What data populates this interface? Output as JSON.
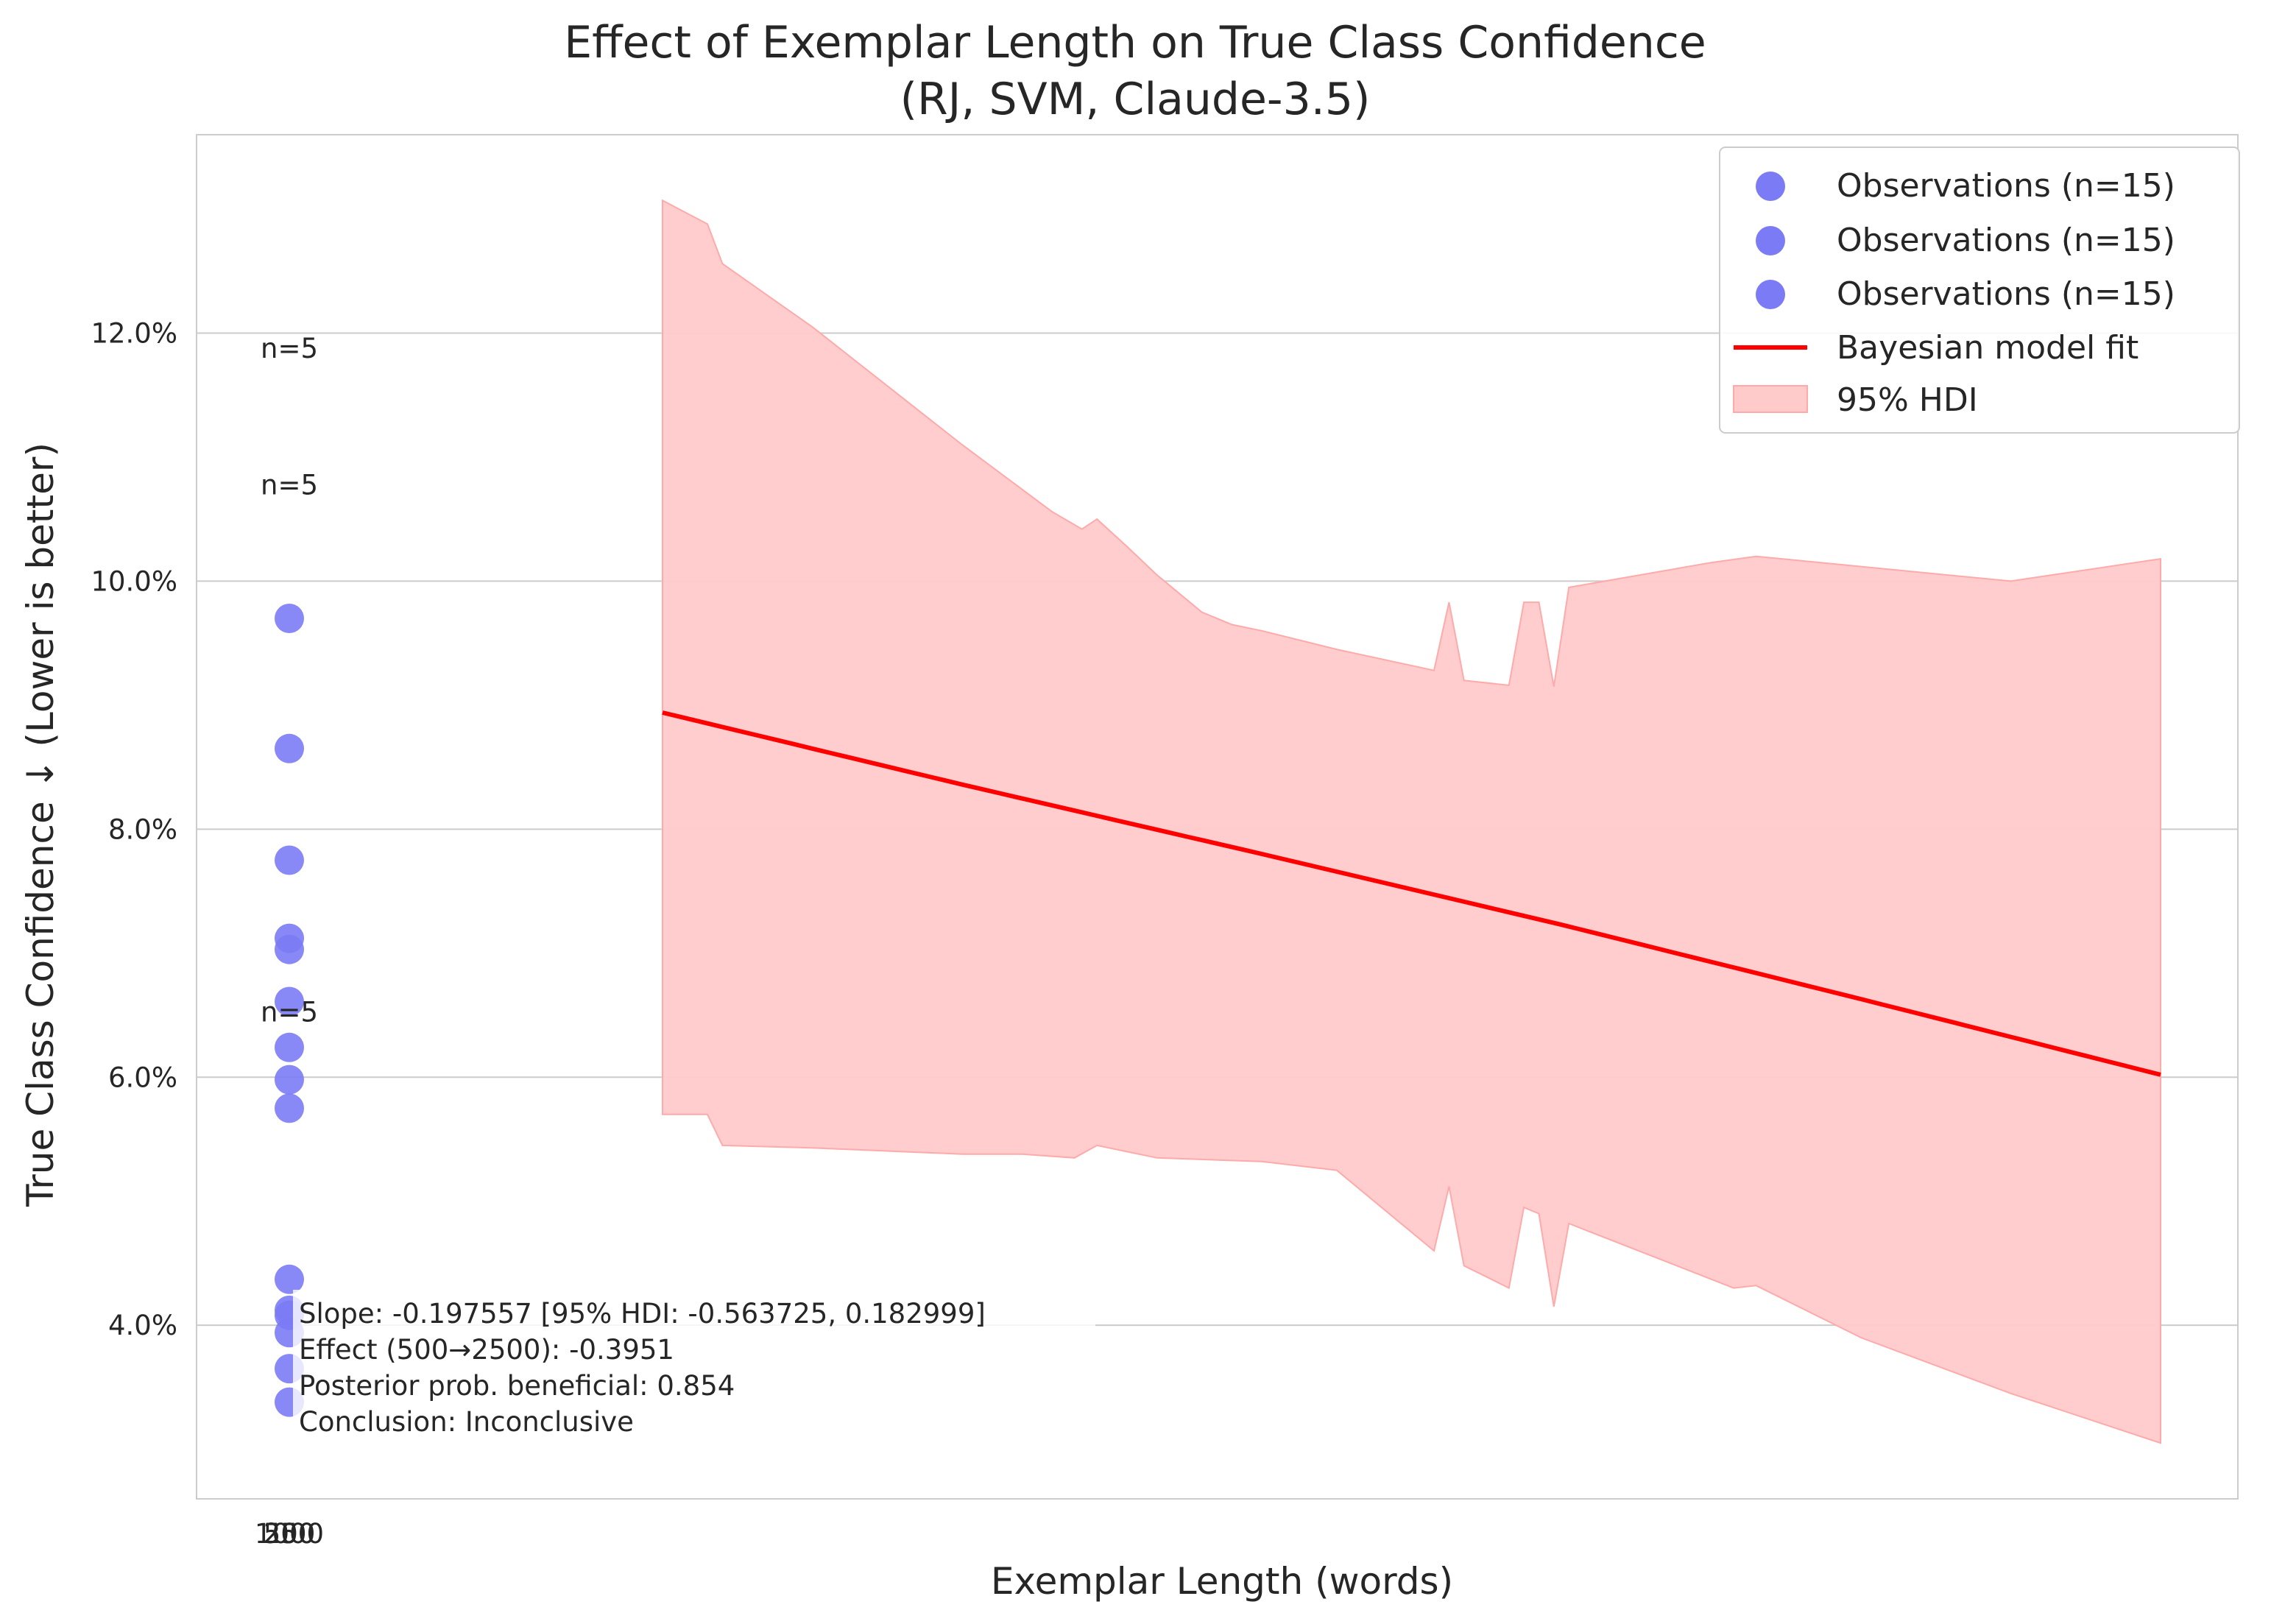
{
  "chart_data": {
    "type": "scatter",
    "title_line1": "Effect of Exemplar Length on True Class Confidence",
    "title_line2": "(RJ, SVM, Claude-3.5)",
    "xlabel": "Exemplar Length (words)",
    "ylabel": "True Class Confidence ↓ (Lower is better)",
    "x_tick_labels": [
      "250",
      "500",
      "1000"
    ],
    "y_ticks": [
      4.0,
      6.0,
      8.0,
      10.0,
      12.0
    ],
    "y_tick_labels": [
      "4.0%",
      "6.0%",
      "8.0%",
      "10.0%",
      "12.0%"
    ],
    "ylim": [
      2.6,
      13.6
    ],
    "grid": "horizontal",
    "legend_placement": "top-right",
    "colors": {
      "observations": "#7b7bf5",
      "fit": "#ff0000",
      "hdi": "#ffcaca",
      "hdi_edge": "#ffaaaa"
    },
    "series": [
      {
        "name": "Observations (n=15)",
        "x_label": "250",
        "values": [
          9.7,
          8.65,
          7.75,
          7.12,
          7.03,
          6.61,
          6.24,
          5.98,
          5.75,
          4.37,
          4.12,
          4.08,
          3.94,
          3.65,
          3.38
        ]
      },
      {
        "name": "Observations (n=15)",
        "x_label": "500",
        "values": []
      },
      {
        "name": "Observations (n=15)",
        "x_label": "1000",
        "values": []
      }
    ],
    "group_annotations": [
      {
        "text": "n=5",
        "y": 11.8
      },
      {
        "text": "n=5",
        "y": 10.7
      },
      {
        "text": "n=5",
        "y": 6.45
      }
    ],
    "fit": {
      "name": "Bayesian model fit",
      "points": [
        [
          0,
          8.94
        ],
        [
          0.2,
          8.36
        ],
        [
          0.4,
          7.8
        ],
        [
          0.6,
          7.23
        ],
        [
          0.8,
          6.63
        ],
        [
          1.0,
          6.02
        ]
      ]
    },
    "hdi": {
      "name": "95% HDI",
      "upper": [
        [
          0,
          13.07
        ],
        [
          0.03,
          12.88
        ],
        [
          0.04,
          12.56
        ],
        [
          0.1,
          12.05
        ],
        [
          0.2,
          11.1
        ],
        [
          0.26,
          10.56
        ],
        [
          0.28,
          10.42
        ],
        [
          0.29,
          10.5
        ],
        [
          0.31,
          10.28
        ],
        [
          0.33,
          10.05
        ],
        [
          0.35,
          9.85
        ],
        [
          0.36,
          9.75
        ],
        [
          0.38,
          9.65
        ],
        [
          0.4,
          9.6
        ],
        [
          0.45,
          9.45
        ],
        [
          0.515,
          9.28
        ],
        [
          0.525,
          9.83
        ],
        [
          0.535,
          9.2
        ],
        [
          0.565,
          9.16
        ],
        [
          0.575,
          9.83
        ],
        [
          0.585,
          9.83
        ],
        [
          0.595,
          9.15
        ],
        [
          0.605,
          9.95
        ],
        [
          0.7,
          10.15
        ],
        [
          0.73,
          10.2
        ],
        [
          0.9,
          10.0
        ],
        [
          1.0,
          10.18
        ]
      ],
      "lower": [
        [
          1.0,
          3.05
        ],
        [
          0.9,
          3.45
        ],
        [
          0.8,
          3.9
        ],
        [
          0.73,
          4.32
        ],
        [
          0.715,
          4.3
        ],
        [
          0.605,
          4.82
        ],
        [
          0.595,
          4.15
        ],
        [
          0.585,
          4.9
        ],
        [
          0.575,
          4.95
        ],
        [
          0.565,
          4.3
        ],
        [
          0.535,
          4.48
        ],
        [
          0.525,
          5.12
        ],
        [
          0.515,
          4.6
        ],
        [
          0.45,
          5.25
        ],
        [
          0.4,
          5.32
        ],
        [
          0.33,
          5.35
        ],
        [
          0.29,
          5.45
        ],
        [
          0.275,
          5.35
        ],
        [
          0.24,
          5.38
        ],
        [
          0.2,
          5.38
        ],
        [
          0.1,
          5.43
        ],
        [
          0.04,
          5.45
        ],
        [
          0.03,
          5.7
        ],
        [
          0,
          5.7
        ]
      ]
    },
    "stats_text": [
      "Slope: -0.197557 [95% HDI: -0.563725, 0.182999]",
      "Effect (500→2500): -0.3951",
      "Posterior prob. beneficial: 0.854",
      "Conclusion: Inconclusive"
    ]
  }
}
